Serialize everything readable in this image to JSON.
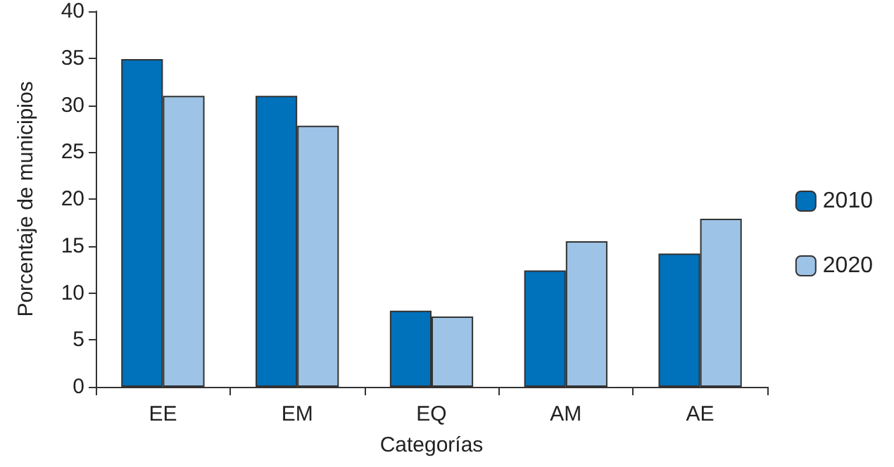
{
  "chart_data": {
    "type": "bar",
    "xlabel": "Categorías",
    "ylabel": "Porcentaje de municipios",
    "categories": [
      "EE",
      "EM",
      "EQ",
      "AM",
      "AE"
    ],
    "series": [
      {
        "name": "2010",
        "color": "#0071bb",
        "values": [
          34.9,
          31,
          8.1,
          12.4,
          14.2
        ]
      },
      {
        "name": "2020",
        "color": "#9dc3e6",
        "values": [
          31,
          27.8,
          7.5,
          15.5,
          17.9
        ]
      }
    ],
    "ylim": [
      0,
      40
    ],
    "yticks": [
      0,
      5,
      10,
      15,
      20,
      25,
      30,
      35,
      40
    ],
    "grid": false,
    "legend": "right"
  }
}
